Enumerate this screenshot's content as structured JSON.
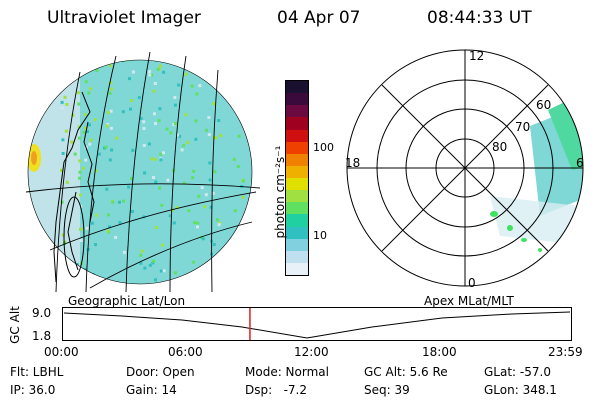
{
  "header": {
    "title": "Ultraviolet Imager",
    "date": "04 Apr 07",
    "time": "08:44:33 UT"
  },
  "colorbar": {
    "units": "photon cm⁻²s⁻¹",
    "ticks": [
      "100",
      "10"
    ],
    "colors": [
      "#1a1030",
      "#3a0a3a",
      "#6a0a40",
      "#a00020",
      "#d01010",
      "#f04000",
      "#f08000",
      "#f0b000",
      "#e0e000",
      "#a0e040",
      "#60e060",
      "#20d0a0",
      "#30c0c0",
      "#80d0e0",
      "#c0e0f0",
      "#e8f0f8"
    ]
  },
  "polar_plot": {
    "mlt_labels": [
      "12",
      "18",
      "6",
      "0"
    ],
    "lat_labels": [
      "60",
      "70",
      "80"
    ]
  },
  "timeline": {
    "left_label": "Geographic Lat/Lon",
    "right_label": "Apex MLat/MLT",
    "axis_title": "GC Alt",
    "y_ticks": [
      "9.0",
      "1.8"
    ],
    "x_ticks": [
      "00:00",
      "06:00",
      "12:00",
      "18:00",
      "23:59"
    ],
    "current_time_fraction": 0.368
  },
  "info": {
    "flt": "Flt: LBHL",
    "ip": "IP: 36.0",
    "door": "Door: Open",
    "gain": "Gain: 14",
    "mode": "Mode: Normal",
    "dsp": "Dsp:   -7.2",
    "gcalt": "GC Alt: 5.6 Re",
    "seq": "Seq: 39",
    "glat": "GLat: -57.0",
    "glon": "GLon: 348.1"
  }
}
